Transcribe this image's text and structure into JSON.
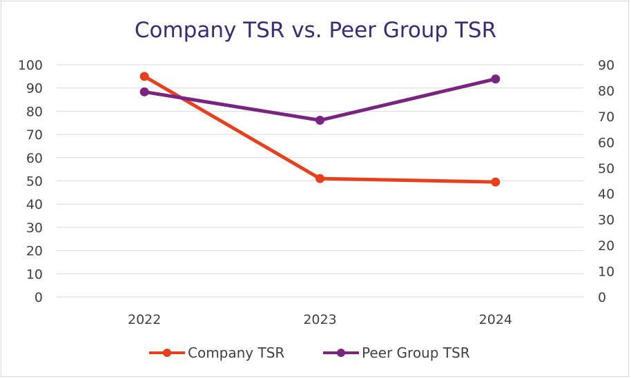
{
  "chart_data": {
    "type": "line",
    "title": "Company TSR vs. Peer Group TSR",
    "categories": [
      "2022",
      "2023",
      "2024"
    ],
    "y_left": {
      "min": 0,
      "max": 100,
      "step": 10,
      "ticks": [
        "0",
        "10",
        "20",
        "30",
        "40",
        "50",
        "60",
        "70",
        "80",
        "90",
        "100"
      ]
    },
    "y_right": {
      "min": 0,
      "max": 90,
      "step": 10,
      "ticks": [
        "0",
        "10",
        "20",
        "30",
        "40",
        "50",
        "60",
        "70",
        "80",
        "90"
      ]
    },
    "grid": true,
    "legend_position": "bottom",
    "series": [
      {
        "name": "Company TSR",
        "axis": "left",
        "color": "#e8401c",
        "values": [
          95,
          51,
          49.5
        ]
      },
      {
        "name": "Peer Group TSR",
        "axis": "right",
        "color": "#7b2382",
        "values": [
          79.5,
          68.5,
          84.5
        ]
      }
    ]
  }
}
